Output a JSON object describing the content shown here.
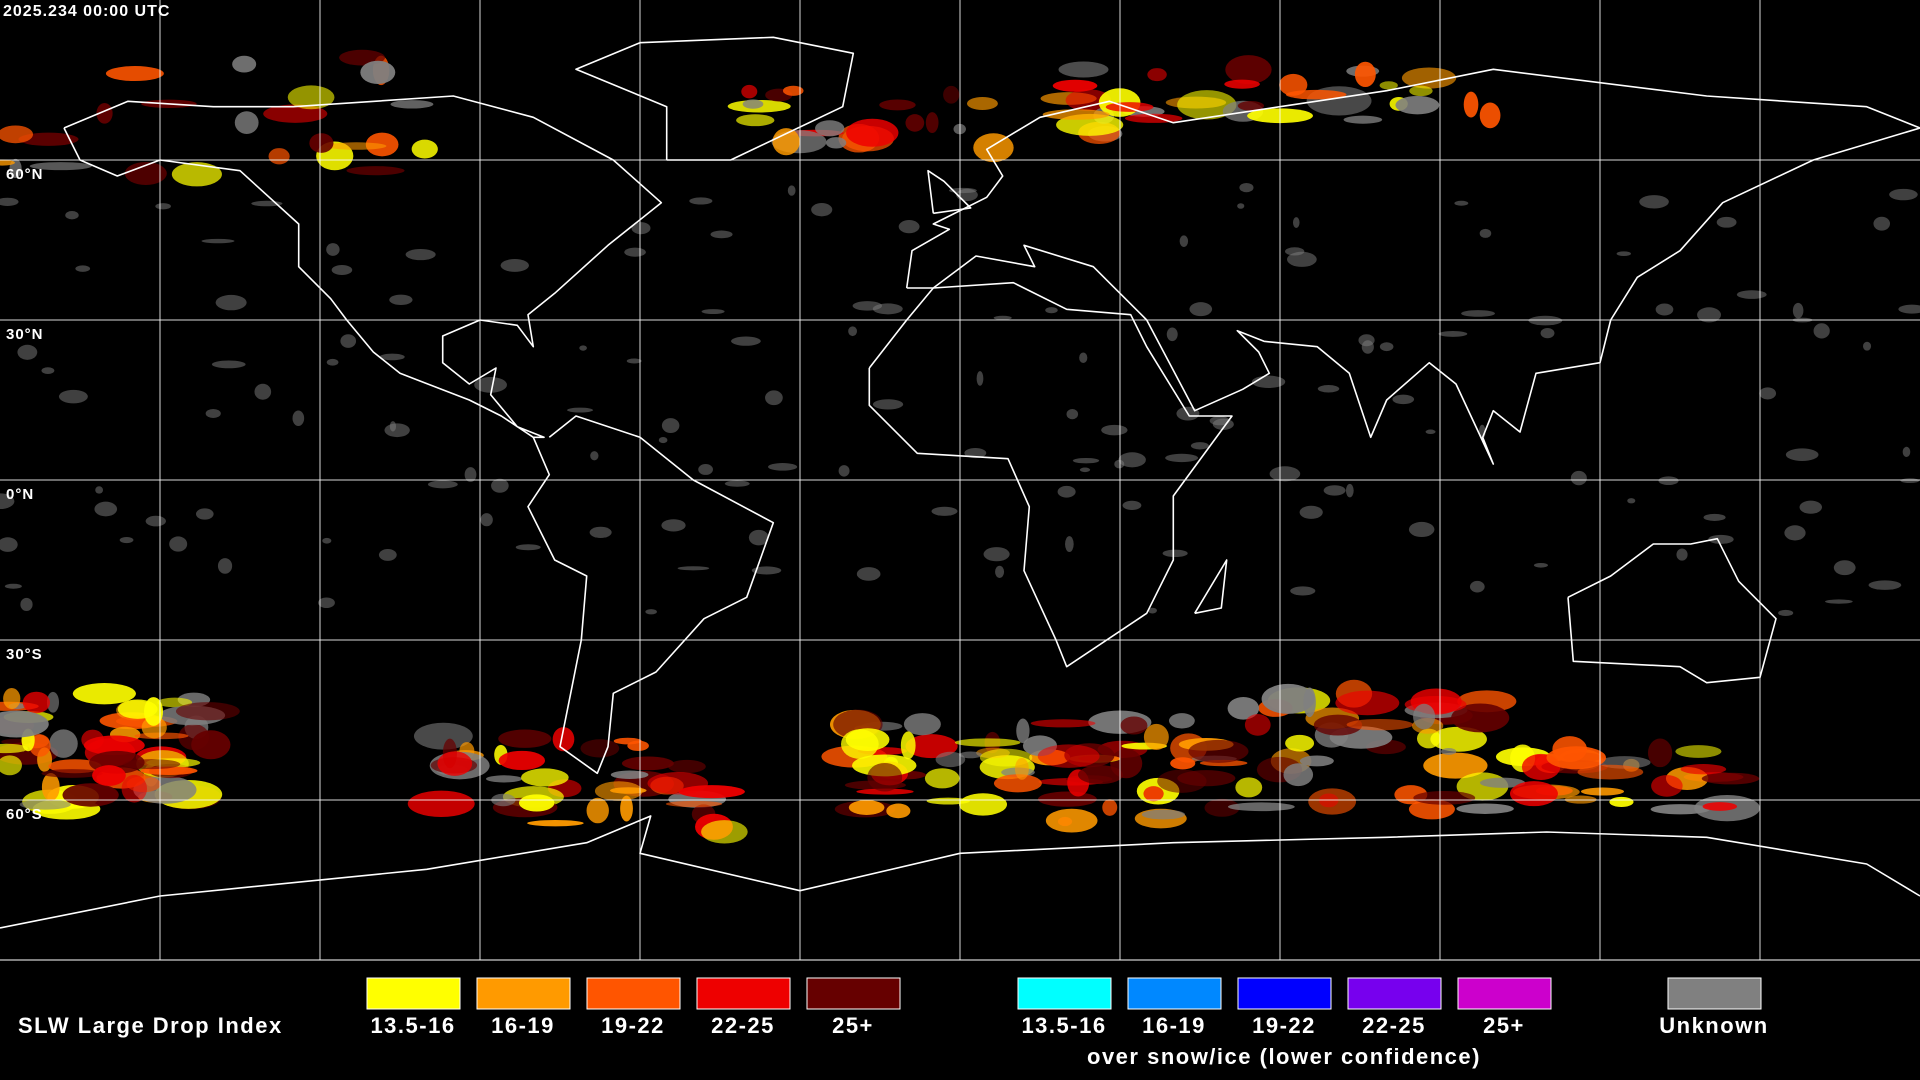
{
  "header": {
    "timestamp": "2025.234 00:00 UTC"
  },
  "latitude_labels": [
    "60°N",
    "30°N",
    "0°N",
    "30°S",
    "60°S"
  ],
  "legend": {
    "title": "SLW Large Drop Index",
    "groups": [
      {
        "items": [
          {
            "label": "13.5-16",
            "color": "#ffff00"
          },
          {
            "label": "16-19",
            "color": "#ff9a00"
          },
          {
            "label": "19-22",
            "color": "#ff5500"
          },
          {
            "label": "22-25",
            "color": "#ee0000"
          },
          {
            "label": "25+",
            "color": "#660000"
          }
        ]
      },
      {
        "items": [
          {
            "label": "13.5-16",
            "color": "#00ffff"
          },
          {
            "label": "16-19",
            "color": "#0088ff"
          },
          {
            "label": "19-22",
            "color": "#0000ff"
          },
          {
            "label": "22-25",
            "color": "#7700ee"
          },
          {
            "label": "25+",
            "color": "#cc00cc"
          }
        ],
        "caption": "over snow/ice (lower confidence)"
      }
    ],
    "unknown": {
      "label": "Unknown",
      "color": "#808080"
    }
  }
}
